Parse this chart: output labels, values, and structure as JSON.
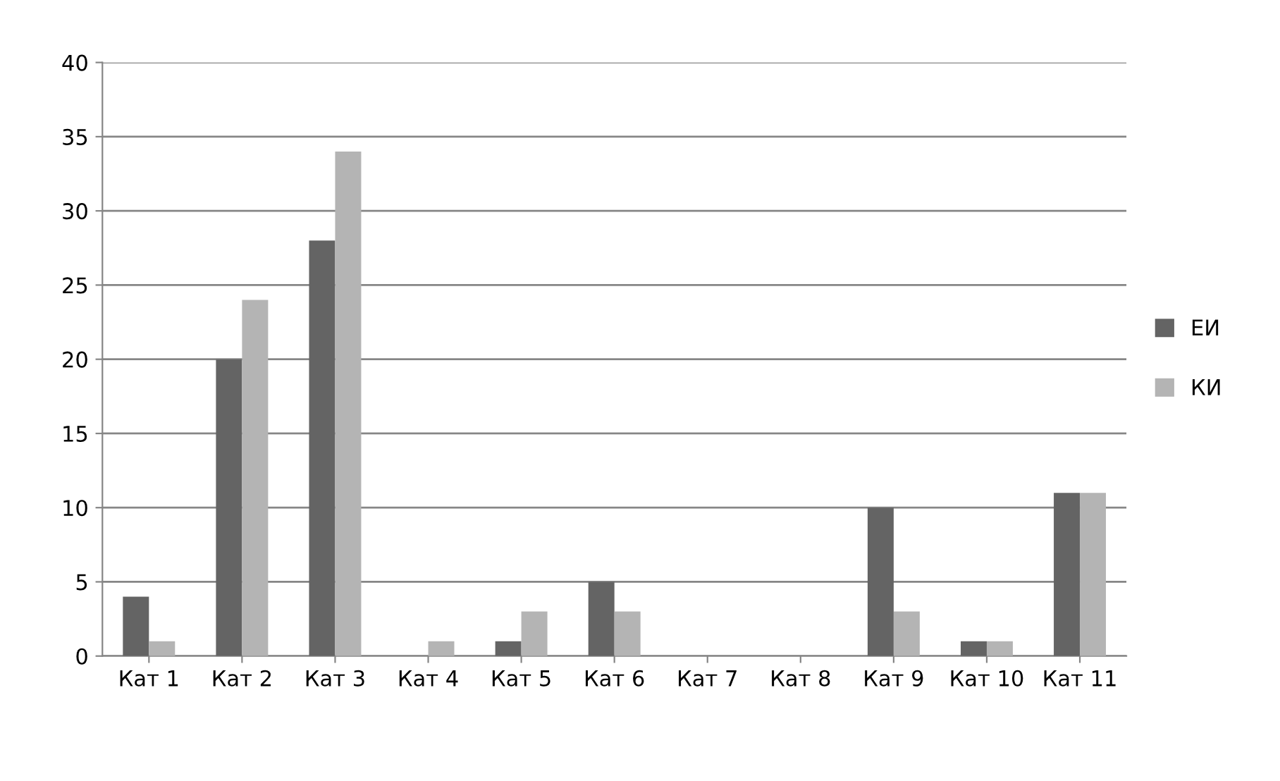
{
  "chart_data": {
    "type": "bar",
    "categories": [
      "Кат 1",
      "Кат 2",
      "Кат 3",
      "Кат 4",
      "Кат 5",
      "Кат 6",
      "Кат 7",
      "Кат 8",
      "Кат 9",
      "Кат 10",
      "Кат 11"
    ],
    "series": [
      {
        "name": "ЕИ",
        "color": "#646464",
        "values": [
          4,
          20,
          28,
          0,
          1,
          5,
          0,
          0,
          10,
          1,
          11
        ]
      },
      {
        "name": "КИ",
        "color": "#b4b4b4",
        "values": [
          1,
          24,
          34,
          1,
          3,
          3,
          0,
          0,
          3,
          1,
          11
        ]
      }
    ],
    "ylim": [
      0,
      40
    ],
    "yticks": [
      0,
      5,
      10,
      15,
      20,
      25,
      30,
      35,
      40
    ],
    "grid": "y",
    "legend": "right"
  }
}
